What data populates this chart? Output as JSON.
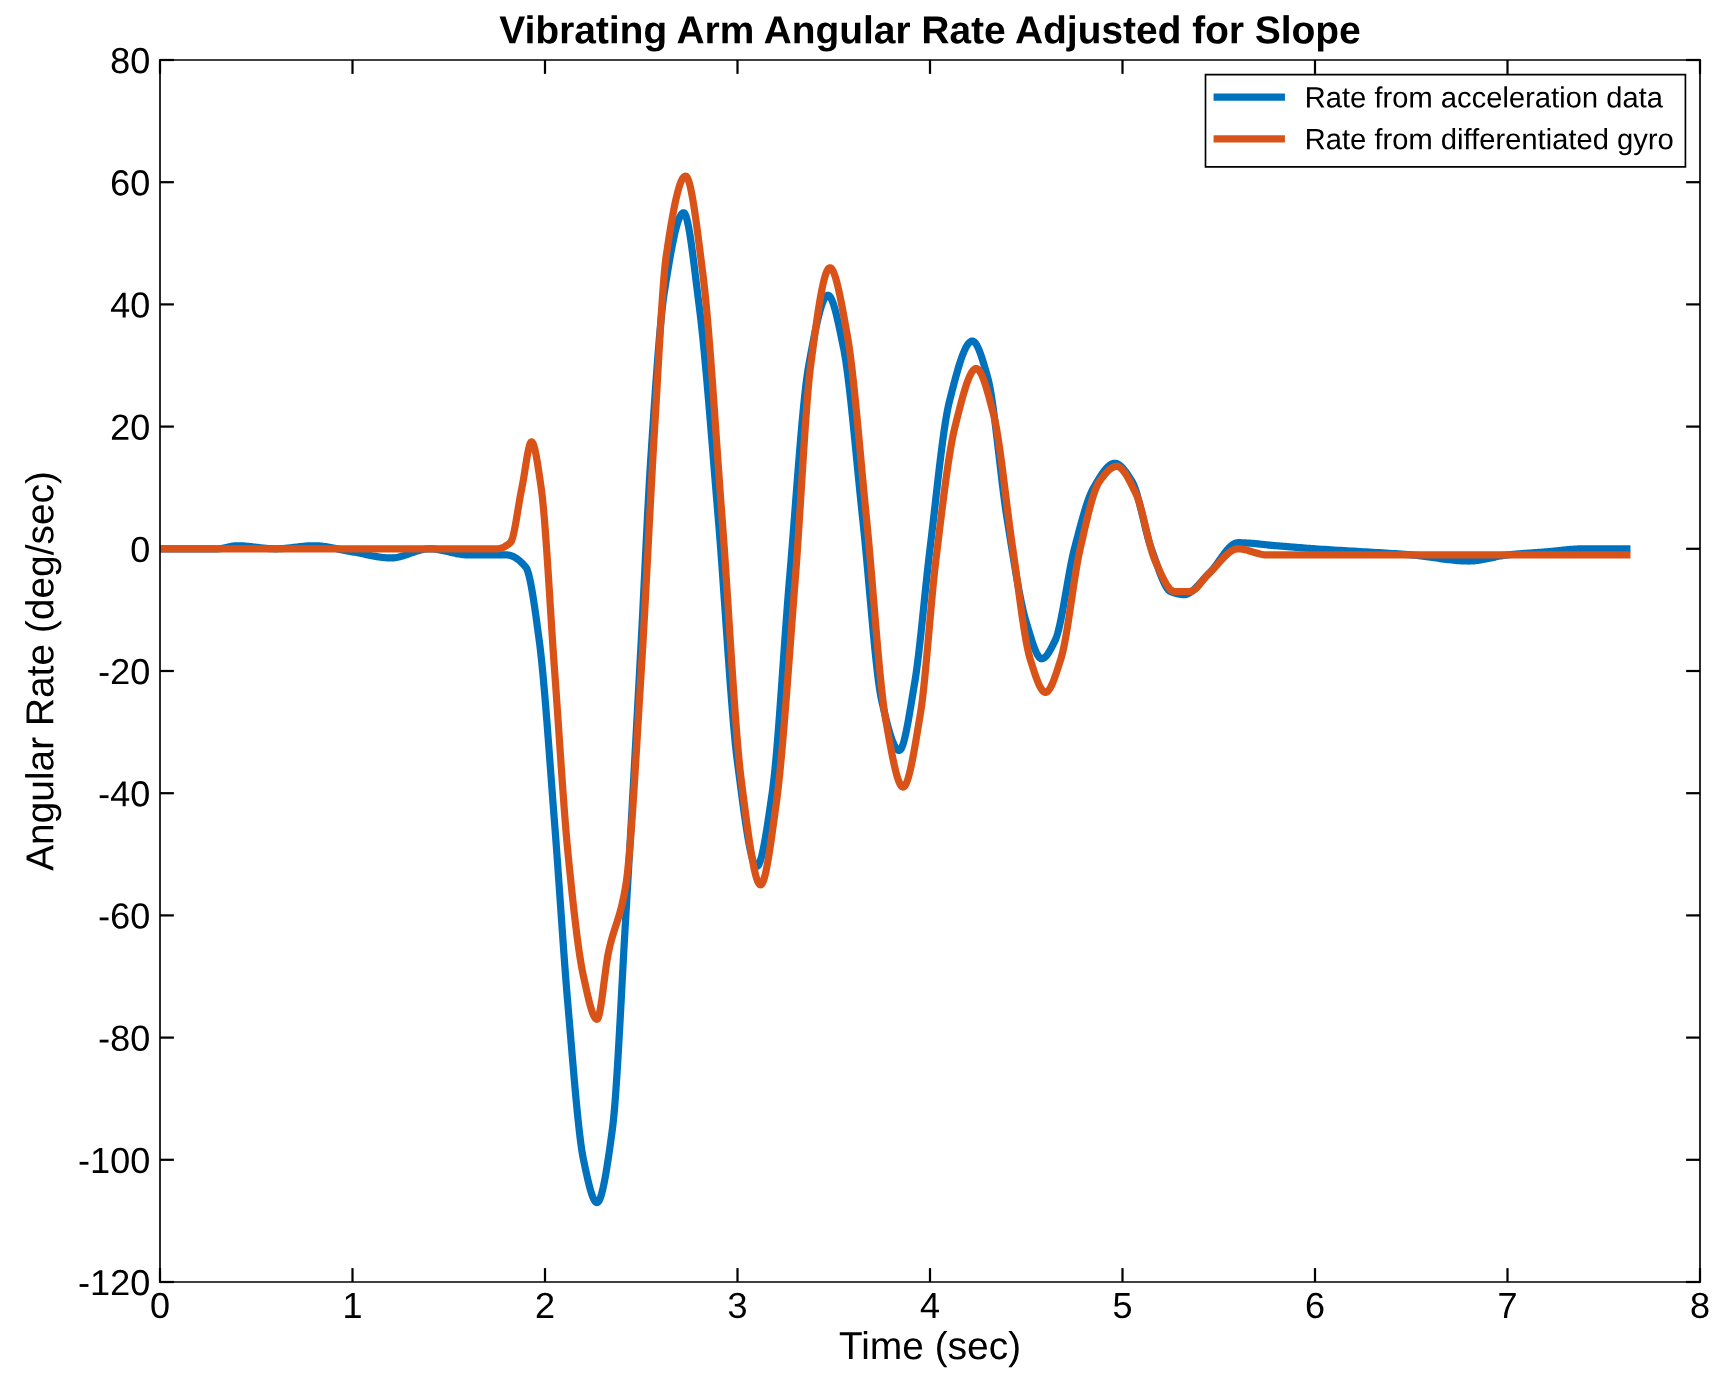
{
  "chart_data": {
    "type": "line",
    "title": "Vibrating Arm Angular Rate Adjusted for Slope",
    "xlabel": "Time (sec)",
    "ylabel": "Angular Rate (deg/sec)",
    "xlim": [
      0,
      8
    ],
    "xticks": [
      0,
      1,
      2,
      3,
      4,
      5,
      6,
      7,
      8
    ],
    "ylim": [
      -120,
      80
    ],
    "yticks": [
      -120,
      -100,
      -80,
      -60,
      -40,
      -20,
      0,
      20,
      40,
      60,
      80
    ],
    "grid": false,
    "legend": "top right",
    "marker": "none",
    "line_style": "solid",
    "series": [
      {
        "name": "Rate from acceleration data",
        "color": "#0072bd",
        "x": [
          0,
          0.3,
          0.4,
          0.6,
          0.8,
          1.0,
          1.2,
          1.4,
          1.6,
          1.8,
          1.9,
          1.97,
          2.05,
          2.12,
          2.2,
          2.27,
          2.35,
          2.42,
          2.5,
          2.55,
          2.62,
          2.72,
          2.8,
          2.9,
          3.0,
          3.1,
          3.18,
          3.27,
          3.37,
          3.47,
          3.55,
          3.65,
          3.75,
          3.84,
          3.92,
          4.0,
          4.1,
          4.22,
          4.3,
          4.4,
          4.5,
          4.58,
          4.65,
          4.75,
          4.85,
          4.96,
          5.05,
          5.15,
          5.25,
          5.32,
          5.45,
          5.6,
          5.8,
          6.0,
          6.5,
          6.8,
          7.0,
          7.2,
          7.4,
          7.62
        ],
        "values": [
          0,
          0,
          0.5,
          0,
          0.5,
          -0.5,
          -1.5,
          0,
          -1,
          -1,
          -3,
          -15,
          -45,
          -75,
          -100,
          -107,
          -95,
          -60,
          -15,
          15,
          42,
          55,
          40,
          5,
          -35,
          -52,
          -40,
          -5,
          30,
          41.5,
          33,
          5,
          -25,
          -33,
          -22,
          0,
          24,
          34,
          28,
          5,
          -12,
          -18,
          -15,
          0,
          10,
          14,
          11,
          0,
          -7,
          -7.5,
          -4,
          1,
          0.5,
          0,
          -1,
          -2,
          -1,
          -0.5,
          0,
          0
        ]
      },
      {
        "name": "Rate from differentiated gyro",
        "color": "#d95319",
        "x": [
          0,
          1.75,
          1.82,
          1.88,
          1.93,
          1.98,
          2.05,
          2.12,
          2.2,
          2.27,
          2.33,
          2.42,
          2.5,
          2.57,
          2.63,
          2.73,
          2.82,
          2.92,
          3.02,
          3.12,
          3.2,
          3.3,
          3.38,
          3.48,
          3.57,
          3.67,
          3.77,
          3.86,
          3.95,
          4.03,
          4.13,
          4.24,
          4.33,
          4.43,
          4.52,
          4.6,
          4.68,
          4.78,
          4.88,
          4.97,
          5.07,
          5.17,
          5.27,
          5.35,
          5.45,
          5.6,
          5.75,
          6.5,
          7.62
        ],
        "values": [
          0,
          0,
          1,
          10,
          17.5,
          10,
          -20,
          -50,
          -70,
          -77,
          -66,
          -55,
          -20,
          20,
          48,
          61,
          45,
          5,
          -38,
          -55,
          -42,
          -5,
          30,
          46,
          35,
          5,
          -28,
          -39,
          -27,
          -2,
          20,
          29.5,
          22,
          0,
          -18,
          -23.5,
          -18,
          0,
          11,
          13.5,
          9,
          -2,
          -7,
          -7,
          -4,
          0,
          -1,
          -1,
          -1
        ]
      }
    ]
  }
}
